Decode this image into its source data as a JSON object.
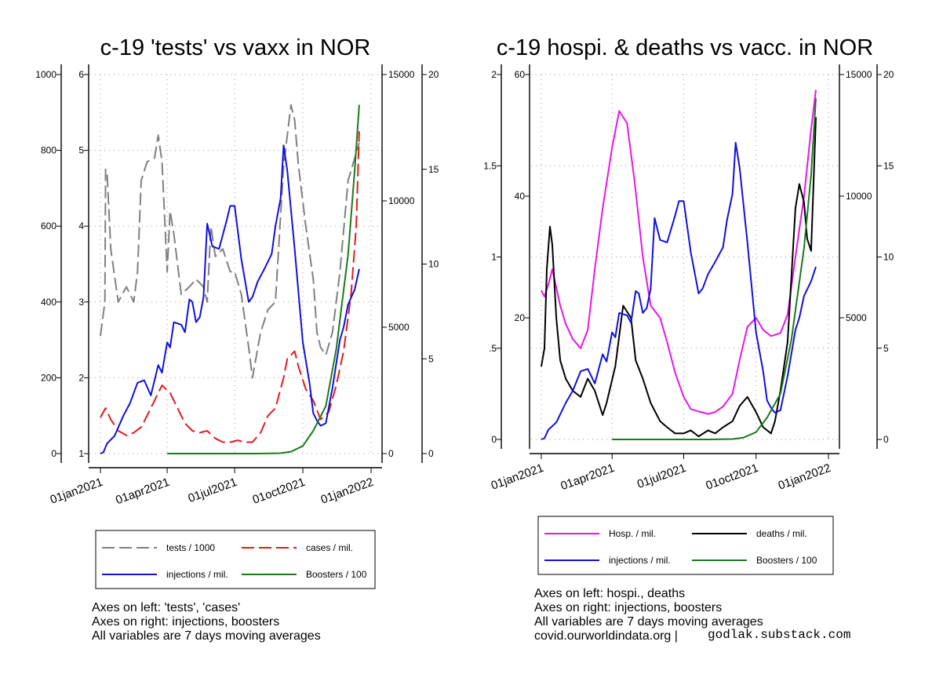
{
  "chart_data": [
    {
      "type": "line",
      "title": "c-19 'tests' vs vaxx in NOR",
      "x_tick_labels": [
        "01jan2021",
        "01apr2021",
        "01jul2021",
        "01oct2021",
        "01jan2022"
      ],
      "axes": {
        "left_outer": {
          "ticks": [
            "0",
            "200",
            "400",
            "600",
            "800",
            "1000"
          ],
          "range": [
            0,
            1000
          ]
        },
        "left_inner": {
          "ticks": [
            "1",
            "2",
            "3",
            "4",
            "5",
            "6"
          ],
          "range": [
            1,
            6
          ]
        },
        "right_inner": {
          "ticks": [
            "0",
            "5000",
            "10000",
            "15000"
          ],
          "range": [
            0,
            15000
          ]
        },
        "right_outer": {
          "ticks": [
            "0",
            "5",
            "10",
            "15",
            "20"
          ],
          "range": [
            0,
            20
          ]
        }
      },
      "grid": true,
      "legend": {
        "position": "bottom",
        "entries": [
          {
            "name": "tests / 1000",
            "color": "#808080",
            "dash": true
          },
          {
            "name": "cases / mil.",
            "color": "#e31a1c",
            "dash": true
          },
          {
            "name": "injections / mil.",
            "color": "#1010dd",
            "dash": false
          },
          {
            "name": "Boosters / 100",
            "color": "#1a7a1a",
            "dash": false
          }
        ]
      },
      "series": [
        {
          "name": "tests / 1000",
          "axis": "left_inner",
          "color": "#808080",
          "dash": true,
          "x": [
            "2021-01-01",
            "2021-01-07",
            "2021-01-08",
            "2021-01-10",
            "2021-01-15",
            "2021-01-25",
            "2021-02-05",
            "2021-02-15",
            "2021-02-20",
            "2021-02-25",
            "2021-03-05",
            "2021-03-15",
            "2021-03-20",
            "2021-03-25",
            "2021-04-01",
            "2021-04-05",
            "2021-04-10",
            "2021-04-20",
            "2021-05-01",
            "2021-05-10",
            "2021-05-20",
            "2021-05-25",
            "2021-05-30",
            "2021-06-05",
            "2021-06-15",
            "2021-06-25",
            "2021-07-01",
            "2021-07-10",
            "2021-07-20",
            "2021-07-25",
            "2021-08-05",
            "2021-08-15",
            "2021-08-25",
            "2021-09-05",
            "2021-09-15",
            "2021-09-20",
            "2021-09-25",
            "2021-10-05",
            "2021-10-15",
            "2021-10-20",
            "2021-10-25",
            "2021-11-01",
            "2021-11-10",
            "2021-11-20",
            "2021-12-01",
            "2021-12-10",
            "2021-12-16"
          ],
          "y": [
            2.55,
            3.0,
            4.75,
            4.7,
            3.7,
            3.0,
            3.2,
            3.0,
            3.4,
            4.6,
            4.85,
            4.9,
            5.2,
            4.85,
            3.4,
            4.2,
            3.9,
            3.1,
            3.2,
            3.3,
            3.2,
            3.0,
            4.0,
            3.6,
            3.7,
            3.4,
            3.4,
            3.1,
            2.4,
            2.0,
            2.6,
            2.9,
            3.0,
            4.8,
            5.6,
            5.4,
            4.8,
            4.0,
            3.3,
            2.6,
            2.4,
            2.3,
            2.6,
            3.4,
            4.6,
            4.9,
            5.1
          ]
        },
        {
          "name": "cases / mil.",
          "axis": "left_outer",
          "color": "#e31a1c",
          "dash": true,
          "x": [
            "2021-01-01",
            "2021-01-05",
            "2021-01-08",
            "2021-01-15",
            "2021-01-25",
            "2021-02-05",
            "2021-02-15",
            "2021-02-25",
            "2021-03-05",
            "2021-03-15",
            "2021-03-25",
            "2021-04-05",
            "2021-04-15",
            "2021-04-25",
            "2021-05-05",
            "2021-05-15",
            "2021-05-25",
            "2021-06-05",
            "2021-06-15",
            "2021-06-25",
            "2021-07-05",
            "2021-07-15",
            "2021-07-25",
            "2021-08-05",
            "2021-08-15",
            "2021-08-25",
            "2021-09-05",
            "2021-09-10",
            "2021-09-20",
            "2021-09-25",
            "2021-10-05",
            "2021-10-15",
            "2021-10-25",
            "2021-11-05",
            "2021-11-15",
            "2021-11-25",
            "2021-12-05",
            "2021-12-12",
            "2021-12-16"
          ],
          "y": [
            95,
            110,
            120,
            90,
            60,
            48,
            55,
            70,
            100,
            140,
            180,
            160,
            120,
            80,
            60,
            55,
            60,
            40,
            30,
            30,
            35,
            30,
            30,
            55,
            100,
            120,
            200,
            250,
            270,
            230,
            170,
            140,
            90,
            110,
            180,
            270,
            420,
            600,
            850
          ]
        },
        {
          "name": "injections / mil.",
          "axis": "right_inner",
          "color": "#1010dd",
          "dash": false,
          "x": [
            "2021-01-01",
            "2021-01-05",
            "2021-01-10",
            "2021-01-20",
            "2021-02-01",
            "2021-02-10",
            "2021-02-20",
            "2021-03-01",
            "2021-03-10",
            "2021-03-20",
            "2021-03-25",
            "2021-04-01",
            "2021-04-05",
            "2021-04-10",
            "2021-04-20",
            "2021-04-25",
            "2021-05-01",
            "2021-05-05",
            "2021-05-10",
            "2021-05-15",
            "2021-05-20",
            "2021-05-25",
            "2021-06-01",
            "2021-06-10",
            "2021-06-20",
            "2021-06-25",
            "2021-07-01",
            "2021-07-10",
            "2021-07-20",
            "2021-07-25",
            "2021-08-01",
            "2021-08-10",
            "2021-08-20",
            "2021-08-25",
            "2021-09-01",
            "2021-09-05",
            "2021-09-10",
            "2021-09-20",
            "2021-10-01",
            "2021-10-10",
            "2021-10-15",
            "2021-10-20",
            "2021-10-25",
            "2021-11-01",
            "2021-11-10",
            "2021-11-20",
            "2021-11-25",
            "2021-12-01",
            "2021-12-10",
            "2021-12-16"
          ],
          "y": [
            0,
            50,
            400,
            700,
            1500,
            2000,
            2800,
            2900,
            2300,
            3500,
            3200,
            4400,
            4200,
            5200,
            5100,
            4800,
            6100,
            6000,
            5200,
            5400,
            6200,
            9100,
            8200,
            8100,
            9200,
            9800,
            9800,
            7700,
            6000,
            6200,
            6800,
            7300,
            7900,
            9000,
            10100,
            12200,
            11200,
            8100,
            4400,
            2800,
            1600,
            1300,
            1100,
            1200,
            2600,
            4500,
            5000,
            5900,
            6500,
            7300
          ]
        },
        {
          "name": "Boosters / 100",
          "axis": "right_outer",
          "color": "#1a7a1a",
          "dash": false,
          "x": [
            "2021-04-01",
            "2021-05-01",
            "2021-06-01",
            "2021-07-01",
            "2021-08-01",
            "2021-09-01",
            "2021-09-15",
            "2021-10-01",
            "2021-10-15",
            "2021-11-01",
            "2021-11-15",
            "2021-12-01",
            "2021-12-10",
            "2021-12-16"
          ],
          "y": [
            0,
            0,
            0,
            0,
            0,
            0.02,
            0.1,
            0.4,
            1.2,
            2.5,
            5.5,
            10.5,
            15.0,
            18.4
          ]
        }
      ]
    },
    {
      "type": "line",
      "title": "c-19 hospi. & deaths vs vacc. in NOR",
      "x_tick_labels": [
        "01jan2021",
        "01apr2021",
        "01jul2021",
        "01oct2021",
        "01jan2022"
      ],
      "axes": {
        "left_outer": {
          "ticks": [
            "0",
            ".5",
            "1",
            "1.5",
            "2"
          ],
          "range": [
            0,
            2
          ]
        },
        "left_inner": {
          "ticks": [
            "20",
            "40",
            "60"
          ],
          "range": [
            0,
            60
          ]
        },
        "right_inner": {
          "ticks": [
            "5000",
            "10000",
            "15000"
          ],
          "range": [
            0,
            15000
          ]
        },
        "right_outer": {
          "ticks": [
            "0",
            "5",
            "10",
            "15",
            "20"
          ],
          "range": [
            0,
            20
          ]
        }
      },
      "grid": true,
      "legend": {
        "position": "bottom",
        "entries": [
          {
            "name": "Hosp. / mil.",
            "color": "#e815e8",
            "dash": false
          },
          {
            "name": "deaths / mil.",
            "color": "#000000",
            "dash": false
          },
          {
            "name": "injections / mil.",
            "color": "#1010dd",
            "dash": false
          },
          {
            "name": "Boosters / 100",
            "color": "#1a7a1a",
            "dash": false
          }
        ]
      },
      "series": [
        {
          "name": "Hosp. / mil.",
          "axis": "left_inner",
          "color": "#e815e8",
          "dash": false,
          "x": [
            "2021-01-01",
            "2021-01-05",
            "2021-01-10",
            "2021-01-15",
            "2021-01-25",
            "2021-02-01",
            "2021-02-10",
            "2021-02-20",
            "2021-03-01",
            "2021-03-10",
            "2021-03-20",
            "2021-04-01",
            "2021-04-10",
            "2021-04-20",
            "2021-04-30",
            "2021-05-10",
            "2021-05-20",
            "2021-06-01",
            "2021-06-10",
            "2021-06-20",
            "2021-07-01",
            "2021-07-10",
            "2021-07-20",
            "2021-08-01",
            "2021-08-10",
            "2021-08-20",
            "2021-09-01",
            "2021-09-10",
            "2021-09-20",
            "2021-10-01",
            "2021-10-10",
            "2021-10-20",
            "2021-11-01",
            "2021-11-10",
            "2021-11-20",
            "2021-12-01",
            "2021-12-10",
            "2021-12-16"
          ],
          "y": [
            24.5,
            23.5,
            25.5,
            28,
            22,
            19,
            16.5,
            15,
            18,
            28,
            38,
            48,
            54,
            52,
            42,
            30,
            22,
            20,
            16,
            11,
            7,
            5,
            4.6,
            4.2,
            4.5,
            5.4,
            7.5,
            13,
            18.5,
            20,
            18,
            17,
            17.5,
            20.5,
            30,
            40,
            51,
            57.5
          ]
        },
        {
          "name": "deaths / mil.",
          "axis": "left_inner",
          "color": "#000000",
          "dash": false,
          "x": [
            "2021-01-01",
            "2021-01-05",
            "2021-01-08",
            "2021-01-12",
            "2021-01-15",
            "2021-01-20",
            "2021-01-25",
            "2021-02-01",
            "2021-02-10",
            "2021-02-20",
            "2021-03-01",
            "2021-03-10",
            "2021-03-20",
            "2021-03-25",
            "2021-04-05",
            "2021-04-15",
            "2021-04-25",
            "2021-05-01",
            "2021-05-10",
            "2021-05-20",
            "2021-06-01",
            "2021-06-10",
            "2021-06-20",
            "2021-07-01",
            "2021-07-10",
            "2021-07-20",
            "2021-08-01",
            "2021-08-10",
            "2021-08-20",
            "2021-09-01",
            "2021-09-10",
            "2021-09-20",
            "2021-10-01",
            "2021-10-10",
            "2021-10-20",
            "2021-10-25",
            "2021-11-01",
            "2021-11-10",
            "2021-11-20",
            "2021-11-25",
            "2021-12-01",
            "2021-12-05",
            "2021-12-10",
            "2021-12-16"
          ],
          "y": [
            12,
            15,
            28,
            35,
            32,
            20,
            13,
            10,
            8,
            7,
            10,
            8,
            4,
            6,
            12,
            22,
            20,
            13,
            10,
            6,
            3,
            2,
            1,
            1,
            1.5,
            0.5,
            1.5,
            1,
            2,
            3,
            5.5,
            7,
            4.5,
            2,
            1,
            3,
            8,
            16,
            38,
            42,
            39,
            33,
            31,
            53
          ]
        },
        {
          "name": "injections / mil.",
          "axis": "right_inner",
          "color": "#1010dd",
          "dash": false,
          "x": [
            "2021-01-01",
            "2021-01-05",
            "2021-01-10",
            "2021-01-20",
            "2021-02-01",
            "2021-02-10",
            "2021-02-20",
            "2021-03-01",
            "2021-03-10",
            "2021-03-20",
            "2021-03-25",
            "2021-04-01",
            "2021-04-05",
            "2021-04-10",
            "2021-04-20",
            "2021-04-25",
            "2021-05-01",
            "2021-05-05",
            "2021-05-10",
            "2021-05-15",
            "2021-05-20",
            "2021-05-25",
            "2021-06-01",
            "2021-06-10",
            "2021-06-20",
            "2021-06-25",
            "2021-07-01",
            "2021-07-10",
            "2021-07-20",
            "2021-07-25",
            "2021-08-01",
            "2021-08-10",
            "2021-08-20",
            "2021-08-25",
            "2021-09-01",
            "2021-09-05",
            "2021-09-10",
            "2021-09-20",
            "2021-10-01",
            "2021-10-10",
            "2021-10-15",
            "2021-10-20",
            "2021-10-25",
            "2021-11-01",
            "2021-11-10",
            "2021-11-20",
            "2021-11-25",
            "2021-12-01",
            "2021-12-10",
            "2021-12-16"
          ],
          "y": [
            0,
            50,
            400,
            700,
            1500,
            2000,
            2800,
            2900,
            2300,
            3500,
            3200,
            4400,
            4200,
            5200,
            5100,
            4800,
            6100,
            6000,
            5200,
            5400,
            6200,
            9100,
            8200,
            8100,
            9200,
            9800,
            9800,
            7700,
            6000,
            6200,
            6800,
            7300,
            7900,
            9000,
            10100,
            12200,
            11200,
            8100,
            4400,
            2800,
            1600,
            1300,
            1100,
            1200,
            2600,
            4500,
            5000,
            5900,
            6500,
            7100
          ]
        },
        {
          "name": "Boosters / 100",
          "axis": "right_outer",
          "color": "#1a7a1a",
          "dash": false,
          "x": [
            "2021-04-01",
            "2021-05-01",
            "2021-06-01",
            "2021-07-01",
            "2021-08-01",
            "2021-09-01",
            "2021-09-15",
            "2021-10-01",
            "2021-10-15",
            "2021-11-01",
            "2021-11-15",
            "2021-12-01",
            "2021-12-10",
            "2021-12-16"
          ],
          "y": [
            0,
            0,
            0,
            0,
            0,
            0.02,
            0.1,
            0.4,
            1.2,
            2.5,
            5.5,
            10.5,
            14.5,
            18.7
          ]
        }
      ]
    }
  ],
  "notes_left": [
    "Axes on left: 'tests', 'cases'",
    "Axes on right: injections, boosters",
    "All variables are 7 days moving averages"
  ],
  "notes_right": [
    "Axes on left: hospi., deaths",
    "Axes on right: injections, boosters",
    "All variables are 7 days moving averages"
  ],
  "source_text": "covid.ourworldindata.org |",
  "credit_text": "godlak.substack.com"
}
